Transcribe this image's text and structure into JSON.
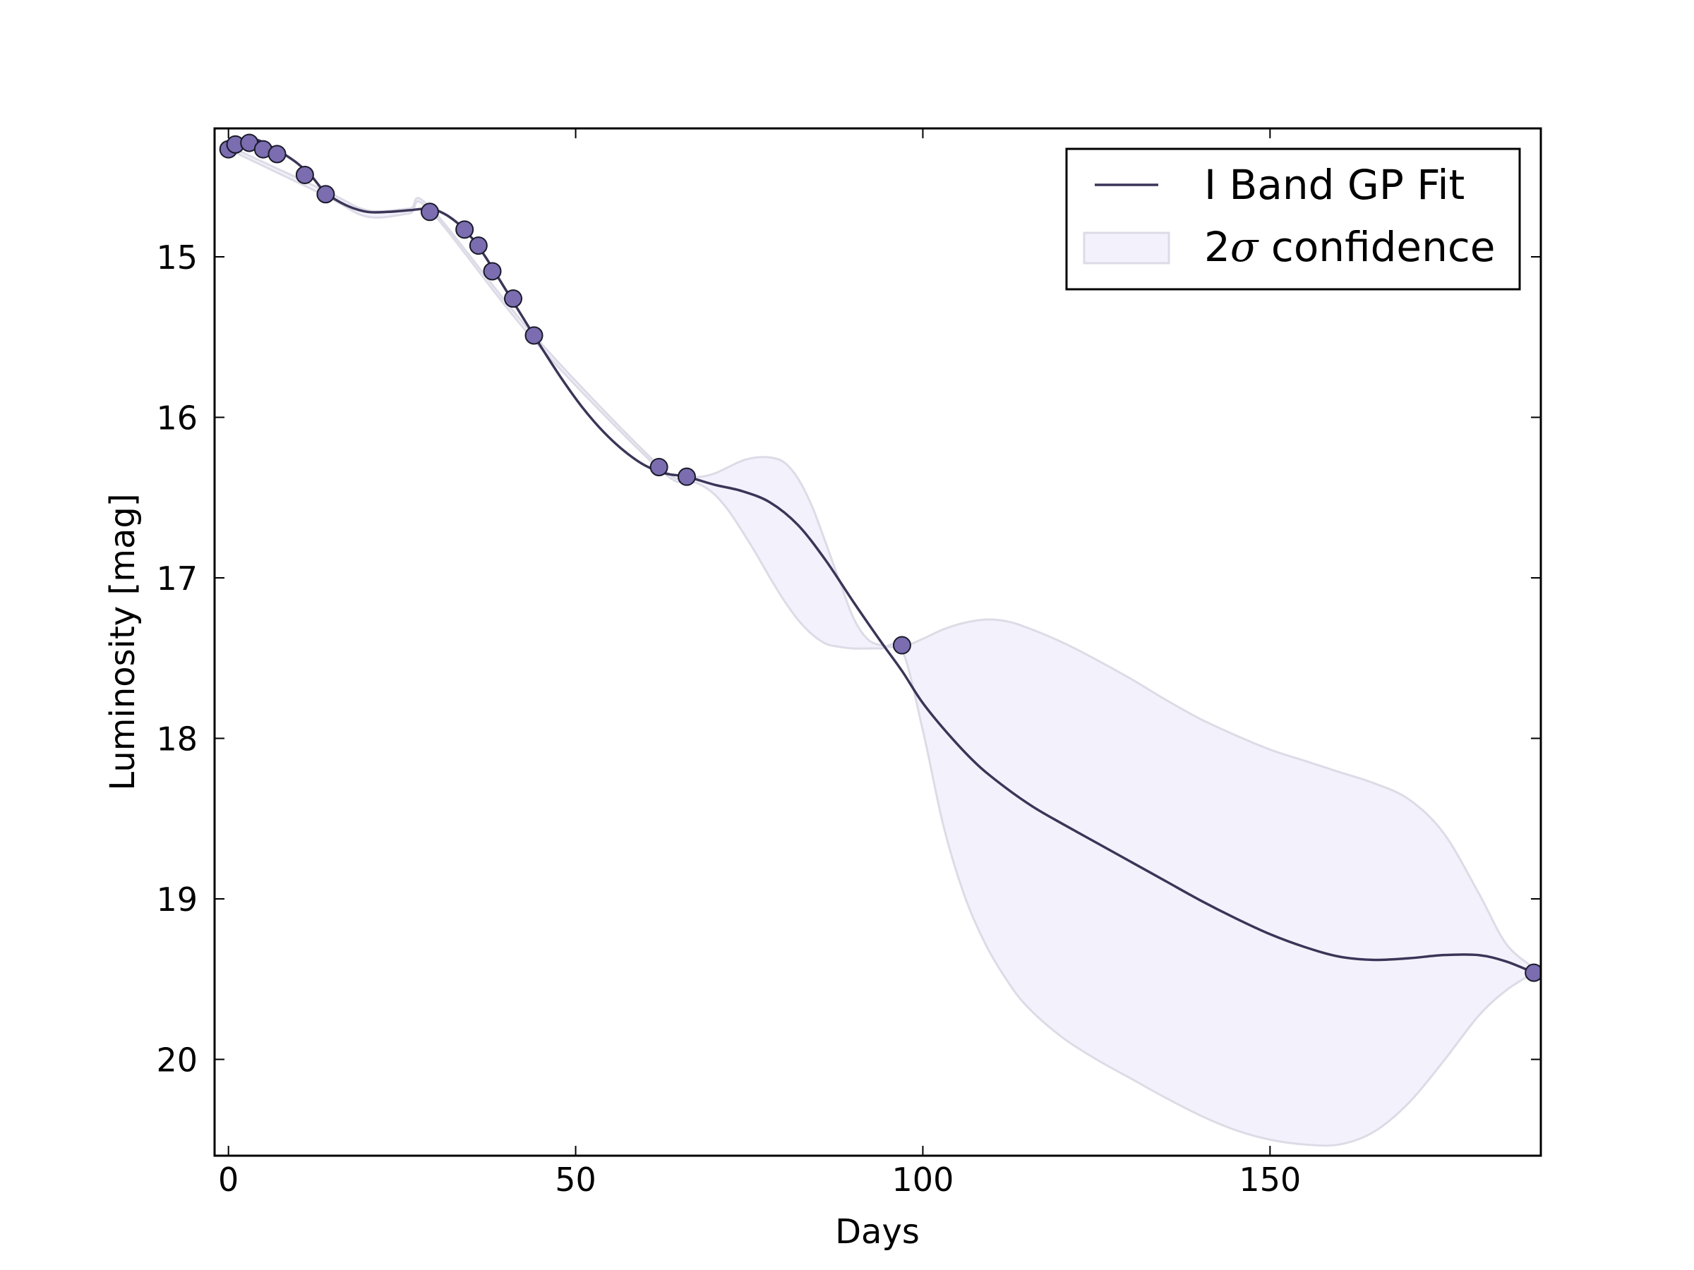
{
  "chart_data": {
    "type": "line",
    "title": "",
    "xlabel": "Days",
    "ylabel": "Luminosity [mag]",
    "xlim": [
      -2,
      189
    ],
    "ylim": [
      20.6,
      14.2
    ],
    "y_inverted": true,
    "xticks": [
      0,
      50,
      100,
      150
    ],
    "yticks": [
      15,
      16,
      17,
      18,
      19,
      20
    ],
    "grid": false,
    "legend": {
      "placement": "top-right",
      "entries": [
        {
          "label": "I Band GP Fit",
          "kind": "line"
        },
        {
          "label": "2σ confidence",
          "label_prefix": "2",
          "label_symbol": "σ",
          "label_suffix": " confidence",
          "kind": "band"
        }
      ]
    },
    "colors": {
      "fit_line": "#3b3558",
      "band_fill": "#f3f2fc",
      "band_edge": "#dcdbe6",
      "marker_fill": "#7b6db0",
      "marker_edge": "#1a1a2a",
      "axes": "#000000"
    },
    "series": [
      {
        "name": "I Band GP Fit",
        "kind": "line",
        "x": [
          0,
          2,
          4,
          6,
          8,
          10,
          12,
          14,
          17,
          20,
          23,
          26,
          29,
          31,
          33,
          35,
          37,
          39,
          41,
          43,
          45,
          48,
          51,
          54,
          57,
          60,
          63,
          66,
          70,
          74,
          78,
          82,
          86,
          90,
          94,
          97,
          100,
          104,
          108,
          112,
          116,
          120,
          125,
          130,
          135,
          140,
          145,
          150,
          155,
          160,
          165,
          170,
          175,
          180,
          184,
          188
        ],
        "y": [
          14.32,
          14.28,
          14.27,
          14.31,
          14.36,
          14.42,
          14.5,
          14.6,
          14.68,
          14.72,
          14.72,
          14.71,
          14.7,
          14.73,
          14.79,
          14.88,
          15.0,
          15.14,
          15.28,
          15.42,
          15.56,
          15.76,
          15.94,
          16.09,
          16.21,
          16.3,
          16.35,
          16.37,
          16.42,
          16.46,
          16.53,
          16.67,
          16.89,
          17.15,
          17.4,
          17.58,
          17.78,
          17.99,
          18.17,
          18.31,
          18.43,
          18.53,
          18.65,
          18.77,
          18.89,
          19.01,
          19.12,
          19.22,
          19.3,
          19.36,
          19.38,
          19.37,
          19.35,
          19.35,
          19.39,
          19.46
        ]
      },
      {
        "name": "2σ confidence",
        "kind": "band",
        "x": [
          0,
          14,
          20,
          26,
          29,
          44,
          62,
          66,
          68,
          70,
          72,
          74,
          76,
          78,
          80,
          82,
          84,
          86,
          88,
          90,
          92,
          94,
          97,
          100,
          103,
          106,
          109,
          112,
          115,
          120,
          125,
          130,
          135,
          140,
          145,
          150,
          155,
          160,
          165,
          170,
          175,
          180,
          184,
          188
        ],
        "lower": [
          14.31,
          14.59,
          14.71,
          14.7,
          14.69,
          15.49,
          16.3,
          16.37,
          16.37,
          16.35,
          16.31,
          16.27,
          16.25,
          16.25,
          16.28,
          16.38,
          16.55,
          16.78,
          17.02,
          17.25,
          17.38,
          17.42,
          17.43,
          17.38,
          17.32,
          17.28,
          17.26,
          17.27,
          17.31,
          17.4,
          17.51,
          17.63,
          17.76,
          17.88,
          17.98,
          18.07,
          18.14,
          18.21,
          18.28,
          18.38,
          18.59,
          18.96,
          19.28,
          19.43
        ],
        "upper": [
          14.33,
          14.62,
          14.75,
          14.73,
          14.71,
          15.52,
          16.32,
          16.39,
          16.42,
          16.48,
          16.58,
          16.71,
          16.85,
          17.0,
          17.14,
          17.26,
          17.35,
          17.41,
          17.43,
          17.44,
          17.44,
          17.44,
          17.45,
          17.95,
          18.55,
          18.98,
          19.28,
          19.5,
          19.67,
          19.86,
          20.0,
          20.12,
          20.24,
          20.35,
          20.44,
          20.5,
          20.53,
          20.53,
          20.45,
          20.27,
          20.01,
          19.73,
          19.57,
          19.46
        ]
      },
      {
        "name": "observations",
        "kind": "scatter",
        "x": [
          0,
          1,
          3,
          5,
          7,
          11,
          14,
          29,
          34,
          36,
          38,
          41,
          44,
          62,
          66,
          97,
          188
        ],
        "y": [
          14.33,
          14.3,
          14.29,
          14.33,
          14.36,
          14.49,
          14.61,
          14.72,
          14.83,
          14.93,
          15.09,
          15.26,
          15.49,
          16.31,
          16.37,
          17.42,
          19.46
        ]
      }
    ]
  }
}
